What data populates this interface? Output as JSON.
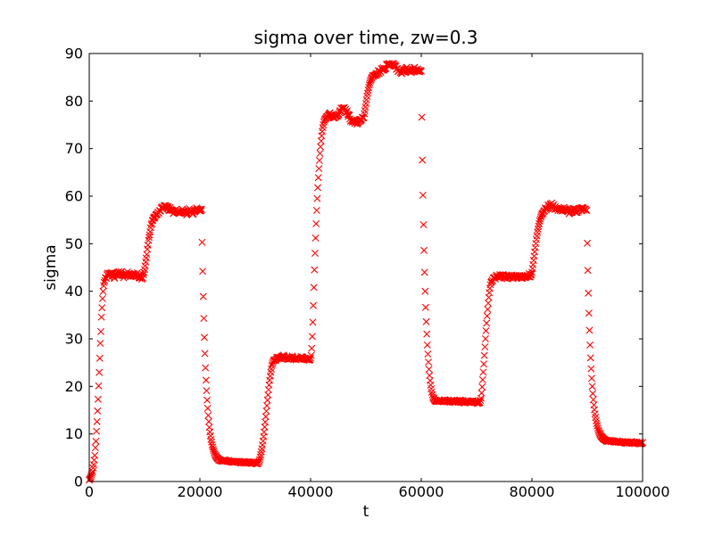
{
  "figure": {
    "background_color": "#ffffff",
    "frame_color": "#000000",
    "text_color": "#000000"
  },
  "chart_data": {
    "type": "scatter",
    "title": "sigma over time, zw=0.3",
    "xlabel": "t",
    "ylabel": "sigma",
    "xlim": [
      0,
      100000
    ],
    "ylim": [
      0,
      90
    ],
    "x_ticks": [
      0,
      20000,
      40000,
      60000,
      80000,
      100000
    ],
    "y_ticks": [
      0,
      10,
      20,
      30,
      40,
      50,
      60,
      70,
      80,
      90
    ],
    "grid": false,
    "legend": "none",
    "marker": "x",
    "marker_color": "#ff0000",
    "marker_size_px": 8,
    "sample_interval_t": 100,
    "noise_seed": 11,
    "keypoint_format": [
      "t",
      "sigma",
      "noise_amplitude_to_next_keypoint"
    ],
    "series_keypoints": [
      [
        0,
        0.3,
        0.05
      ],
      [
        200,
        0.7,
        0.05
      ],
      [
        400,
        1.3,
        0.08
      ],
      [
        600,
        2.2,
        0.1
      ],
      [
        800,
        3.5,
        0.1
      ],
      [
        1000,
        5.5,
        0.15
      ],
      [
        1200,
        8.5,
        0.2
      ],
      [
        1400,
        12.5,
        0.25
      ],
      [
        1600,
        17.5,
        0.3
      ],
      [
        1800,
        23,
        0.3
      ],
      [
        2000,
        29,
        0.3
      ],
      [
        2200,
        34.5,
        0.3
      ],
      [
        2400,
        38.5,
        0.3
      ],
      [
        2600,
        41,
        0.3
      ],
      [
        2800,
        42.4,
        0.4
      ],
      [
        3000,
        43.1,
        0.5
      ],
      [
        3800,
        43.7,
        0.5
      ],
      [
        4600,
        43.2,
        0.5
      ],
      [
        5400,
        44,
        0.5
      ],
      [
        6200,
        43.3,
        0.5
      ],
      [
        7000,
        43.8,
        0.5
      ],
      [
        7800,
        43.1,
        0.5
      ],
      [
        8600,
        43.6,
        0.5
      ],
      [
        9300,
        43,
        0.4
      ],
      [
        9700,
        42.7,
        0.3
      ],
      [
        9900,
        43.8,
        0.2
      ],
      [
        10100,
        45.3,
        0.2
      ],
      [
        10300,
        47,
        0.2
      ],
      [
        10500,
        48.8,
        0.2
      ],
      [
        10700,
        50.5,
        0.2
      ],
      [
        10900,
        52,
        0.2
      ],
      [
        11100,
        53.3,
        0.2
      ],
      [
        11300,
        54.3,
        0.2
      ],
      [
        11500,
        55,
        0.2
      ],
      [
        11700,
        55.5,
        0.3
      ],
      [
        12200,
        56.2,
        0.4
      ],
      [
        12700,
        56.9,
        0.4
      ],
      [
        13300,
        57.6,
        0.4
      ],
      [
        13900,
        58,
        0.4
      ],
      [
        14500,
        57.3,
        0.4
      ],
      [
        15100,
        56.6,
        0.4
      ],
      [
        15700,
        57.2,
        0.4
      ],
      [
        16300,
        56.4,
        0.4
      ],
      [
        16900,
        57,
        0.4
      ],
      [
        17500,
        56.3,
        0.4
      ],
      [
        18100,
        57.1,
        0.4
      ],
      [
        18700,
        56.5,
        0.4
      ],
      [
        19300,
        57.3,
        0.4
      ],
      [
        19900,
        56.9,
        0.4
      ],
      [
        20300,
        57.2,
        0
      ],
      [
        20400,
        50.3,
        0
      ],
      [
        20500,
        44.2,
        0
      ],
      [
        20600,
        38.9,
        0
      ],
      [
        20700,
        34.3,
        0
      ],
      [
        20800,
        30.3,
        0
      ],
      [
        20900,
        26.9,
        0
      ],
      [
        21000,
        23.9,
        0
      ],
      [
        21100,
        21.3,
        0
      ],
      [
        21200,
        19.1,
        0
      ],
      [
        21300,
        17.1,
        0
      ],
      [
        21400,
        15.4,
        0
      ],
      [
        21500,
        13.9,
        0
      ],
      [
        21600,
        12.6,
        0
      ],
      [
        21700,
        11.4,
        0
      ],
      [
        21800,
        10.4,
        0
      ],
      [
        21900,
        9.6,
        0
      ],
      [
        22000,
        8.8,
        0.05
      ],
      [
        22200,
        7.7,
        0.05
      ],
      [
        22400,
        6.8,
        0.05
      ],
      [
        22600,
        6.1,
        0.08
      ],
      [
        22800,
        5.5,
        0.08
      ],
      [
        23000,
        5.1,
        0.1
      ],
      [
        23300,
        4.7,
        0.12
      ],
      [
        23600,
        4.5,
        0.15
      ],
      [
        24000,
        4.4,
        0.2
      ],
      [
        25000,
        4.3,
        0.2
      ],
      [
        26000,
        4.2,
        0.2
      ],
      [
        27000,
        4.1,
        0.2
      ],
      [
        28000,
        4,
        0.2
      ],
      [
        29000,
        4,
        0.2
      ],
      [
        30000,
        3.9,
        0.2
      ],
      [
        30600,
        3.9,
        0.05
      ],
      [
        30800,
        4.6,
        0
      ],
      [
        31000,
        5.6,
        0
      ],
      [
        31200,
        6.9,
        0
      ],
      [
        31400,
        8.5,
        0
      ],
      [
        31600,
        10.4,
        0
      ],
      [
        31800,
        12.5,
        0
      ],
      [
        32000,
        14.8,
        0
      ],
      [
        32200,
        17.1,
        0
      ],
      [
        32400,
        19.3,
        0
      ],
      [
        32600,
        21.3,
        0
      ],
      [
        32800,
        23,
        0
      ],
      [
        33000,
        24.3,
        0.1
      ],
      [
        33200,
        25.2,
        0.15
      ],
      [
        33500,
        25.7,
        0.3
      ],
      [
        34300,
        26,
        0.3
      ],
      [
        35100,
        26.3,
        0.3
      ],
      [
        35900,
        25.9,
        0.3
      ],
      [
        36700,
        26.2,
        0.3
      ],
      [
        37500,
        25.8,
        0.3
      ],
      [
        38300,
        26.1,
        0.3
      ],
      [
        39100,
        25.7,
        0.3
      ],
      [
        39900,
        25.6,
        0.1
      ],
      [
        40100,
        26.5,
        0
      ],
      [
        40200,
        28,
        0
      ],
      [
        40300,
        30.5,
        0
      ],
      [
        40400,
        33.5,
        0
      ],
      [
        40500,
        37,
        0
      ],
      [
        40600,
        40.8,
        0
      ],
      [
        40700,
        44.5,
        0
      ],
      [
        40800,
        48,
        0
      ],
      [
        40900,
        51.2,
        0
      ],
      [
        41000,
        54.2,
        0
      ],
      [
        41100,
        57,
        0
      ],
      [
        41200,
        59.5,
        0
      ],
      [
        41300,
        61.8,
        0
      ],
      [
        41400,
        63.9,
        0
      ],
      [
        41500,
        65.8,
        0
      ],
      [
        41600,
        67.5,
        0
      ],
      [
        41700,
        69,
        0
      ],
      [
        41800,
        70.4,
        0
      ],
      [
        41900,
        71.6,
        0
      ],
      [
        42000,
        72.7,
        0
      ],
      [
        42100,
        73.6,
        0
      ],
      [
        42200,
        74.4,
        0
      ],
      [
        42400,
        75.6,
        0
      ],
      [
        42600,
        76.3,
        0.2
      ],
      [
        43000,
        76.8,
        0.4
      ],
      [
        43600,
        77.3,
        0.4
      ],
      [
        44200,
        76.6,
        0.4
      ],
      [
        44800,
        77.1,
        0.4
      ],
      [
        45400,
        78.1,
        0.4
      ],
      [
        46000,
        78.5,
        0.4
      ],
      [
        46600,
        77.6,
        0.4
      ],
      [
        47200,
        76.2,
        0.4
      ],
      [
        47800,
        75.6,
        0.4
      ],
      [
        48400,
        75.4,
        0.35
      ],
      [
        49000,
        76,
        0.3
      ],
      [
        49600,
        76.6,
        0.1
      ],
      [
        49800,
        78,
        0
      ],
      [
        50000,
        79.5,
        0
      ],
      [
        50200,
        81,
        0
      ],
      [
        50400,
        82.3,
        0
      ],
      [
        50600,
        83.4,
        0
      ],
      [
        50800,
        84.2,
        0
      ],
      [
        51000,
        84.8,
        0
      ],
      [
        51200,
        85.2,
        0.2
      ],
      [
        51600,
        85.5,
        0.4
      ],
      [
        52400,
        86.2,
        0.4
      ],
      [
        53200,
        86.9,
        0.4
      ],
      [
        54000,
        87.6,
        0.4
      ],
      [
        54800,
        88,
        0.4
      ],
      [
        55600,
        86.8,
        0.4
      ],
      [
        56400,
        85.9,
        0.4
      ],
      [
        57200,
        86.9,
        0.4
      ],
      [
        58000,
        86.3,
        0.4
      ],
      [
        58800,
        86.8,
        0.4
      ],
      [
        59600,
        86.4,
        0.3
      ],
      [
        60000,
        86.3,
        0
      ],
      [
        60100,
        76.6,
        0
      ],
      [
        60200,
        67.6,
        0
      ],
      [
        60300,
        60.2,
        0
      ],
      [
        60400,
        54,
        0
      ],
      [
        60500,
        48.6,
        0
      ],
      [
        60600,
        44,
        0
      ],
      [
        60700,
        40,
        0
      ],
      [
        60800,
        36.6,
        0
      ],
      [
        60900,
        33.6,
        0
      ],
      [
        61000,
        31,
        0
      ],
      [
        61100,
        28.7,
        0
      ],
      [
        61200,
        26.8,
        0
      ],
      [
        61300,
        25.1,
        0
      ],
      [
        61400,
        23.6,
        0
      ],
      [
        61500,
        22.3,
        0
      ],
      [
        61600,
        21.2,
        0
      ],
      [
        61700,
        20.3,
        0
      ],
      [
        61800,
        19.5,
        0
      ],
      [
        61900,
        18.8,
        0
      ],
      [
        62000,
        18.2,
        0.05
      ],
      [
        62200,
        17.5,
        0.08
      ],
      [
        62400,
        17.1,
        0.1
      ],
      [
        62700,
        16.9,
        0.12
      ],
      [
        63000,
        16.9,
        0.15
      ],
      [
        64000,
        17,
        0.25
      ],
      [
        65000,
        16.9,
        0.25
      ],
      [
        66000,
        16.8,
        0.25
      ],
      [
        67000,
        16.9,
        0.25
      ],
      [
        68000,
        16.7,
        0.25
      ],
      [
        69000,
        16.8,
        0.25
      ],
      [
        70000,
        16.6,
        0.25
      ],
      [
        70600,
        16.6,
        0.05
      ],
      [
        70800,
        17.5,
        0
      ],
      [
        70900,
        18.6,
        0
      ],
      [
        71000,
        19.9,
        0
      ],
      [
        71100,
        21.4,
        0
      ],
      [
        71200,
        23,
        0
      ],
      [
        71300,
        24.7,
        0
      ],
      [
        71400,
        26.5,
        0
      ],
      [
        71500,
        28.3,
        0
      ],
      [
        71600,
        30,
        0
      ],
      [
        71700,
        31.7,
        0
      ],
      [
        71800,
        33.3,
        0
      ],
      [
        71900,
        34.8,
        0
      ],
      [
        72000,
        36.2,
        0
      ],
      [
        72100,
        37.5,
        0
      ],
      [
        72200,
        38.7,
        0
      ],
      [
        72300,
        39.7,
        0
      ],
      [
        72400,
        40.6,
        0
      ],
      [
        72500,
        41.4,
        0
      ],
      [
        72600,
        42,
        0.15
      ],
      [
        72900,
        42.5,
        0.4
      ],
      [
        73600,
        43,
        0.4
      ],
      [
        74400,
        43.4,
        0.4
      ],
      [
        75200,
        42.8,
        0.4
      ],
      [
        76000,
        43.2,
        0.4
      ],
      [
        76800,
        42.9,
        0.4
      ],
      [
        77600,
        43.3,
        0.4
      ],
      [
        78400,
        43,
        0.4
      ],
      [
        79200,
        43.4,
        0.4
      ],
      [
        79800,
        43.3,
        0.1
      ],
      [
        80000,
        44,
        0
      ],
      [
        80200,
        45.6,
        0
      ],
      [
        80400,
        47.4,
        0
      ],
      [
        80600,
        49.2,
        0
      ],
      [
        80800,
        50.9,
        0
      ],
      [
        81000,
        52.4,
        0
      ],
      [
        81200,
        53.7,
        0
      ],
      [
        81400,
        54.8,
        0
      ],
      [
        81600,
        55.6,
        0
      ],
      [
        81800,
        56.2,
        0
      ],
      [
        82000,
        56.6,
        0.2
      ],
      [
        82400,
        57.2,
        0.4
      ],
      [
        83000,
        57.9,
        0.4
      ],
      [
        83600,
        58.2,
        0.4
      ],
      [
        84200,
        57.5,
        0.4
      ],
      [
        85000,
        56.9,
        0.4
      ],
      [
        85800,
        57.4,
        0.4
      ],
      [
        86600,
        56.6,
        0.4
      ],
      [
        87400,
        57.2,
        0.4
      ],
      [
        88200,
        56.8,
        0.4
      ],
      [
        89000,
        57.3,
        0.4
      ],
      [
        89800,
        57,
        0
      ],
      [
        89900,
        57,
        0
      ],
      [
        90000,
        50.1,
        0
      ],
      [
        90100,
        44.4,
        0
      ],
      [
        90200,
        39.6,
        0
      ],
      [
        90300,
        35.4,
        0
      ],
      [
        90400,
        31.8,
        0
      ],
      [
        90500,
        28.7,
        0
      ],
      [
        90600,
        26,
        0
      ],
      [
        90700,
        23.7,
        0
      ],
      [
        90800,
        21.7,
        0
      ],
      [
        90900,
        20,
        0
      ],
      [
        91000,
        18.5,
        0
      ],
      [
        91100,
        17.2,
        0
      ],
      [
        91200,
        16.1,
        0
      ],
      [
        91300,
        15.1,
        0
      ],
      [
        91400,
        14.2,
        0
      ],
      [
        91500,
        13.5,
        0
      ],
      [
        91600,
        12.8,
        0
      ],
      [
        91700,
        12.2,
        0
      ],
      [
        91800,
        11.7,
        0
      ],
      [
        91900,
        11.2,
        0
      ],
      [
        92000,
        10.8,
        0.03
      ],
      [
        92200,
        10.2,
        0.05
      ],
      [
        92400,
        9.7,
        0.05
      ],
      [
        92600,
        9.4,
        0.08
      ],
      [
        92800,
        9.1,
        0.1
      ],
      [
        93000,
        8.9,
        0.1
      ],
      [
        93400,
        8.6,
        0.15
      ],
      [
        94000,
        8.5,
        0.2
      ],
      [
        95000,
        8.4,
        0.2
      ],
      [
        96000,
        8.3,
        0.2
      ],
      [
        97000,
        8.2,
        0.2
      ],
      [
        98000,
        8.2,
        0.2
      ],
      [
        99000,
        8.1,
        0.2
      ],
      [
        100000,
        8.1,
        0.2
      ]
    ]
  }
}
